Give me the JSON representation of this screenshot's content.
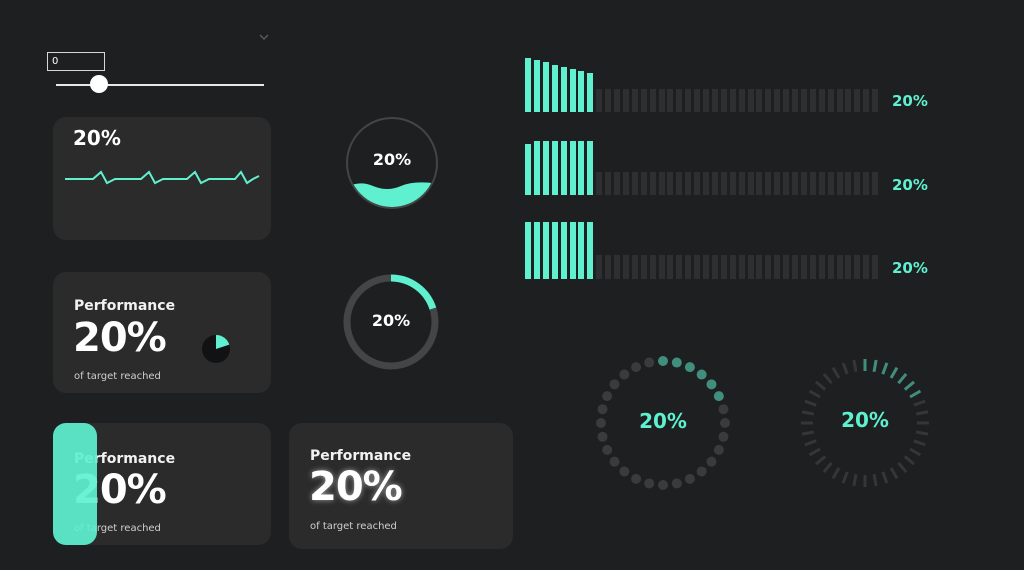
{
  "theme": {
    "accent": "#5ef0cf",
    "background": "#1e1f21",
    "card": "#2b2b2b",
    "track": "#3a3a3a"
  },
  "controls": {
    "dropdown": {
      "label": "",
      "icon": "chevron-down-icon"
    },
    "input": {
      "value": "0"
    },
    "slider": {
      "value": 20,
      "min": 0,
      "max": 100
    }
  },
  "value_percent": 20,
  "cards": {
    "sparkline": {
      "value": "20%"
    },
    "performance_pie": {
      "title": "Performance",
      "value": "20%",
      "subtitle": "of target reached"
    },
    "performance_bar": {
      "title": "Performance",
      "value": "20%",
      "subtitle": "of target reached"
    },
    "performance_glow": {
      "title": "Performance",
      "value": "20%",
      "subtitle": "of target reached"
    }
  },
  "gauges": {
    "wave_circle": {
      "value": "20%"
    },
    "ring": {
      "value": "20%"
    },
    "dots_ring": {
      "value": "20%"
    },
    "ticks_ring": {
      "value": "20%"
    }
  },
  "bars": [
    {
      "value": "20%",
      "style": "descending"
    },
    {
      "value": "20%",
      "style": "lower-start"
    },
    {
      "value": "20%",
      "style": "full"
    }
  ]
}
